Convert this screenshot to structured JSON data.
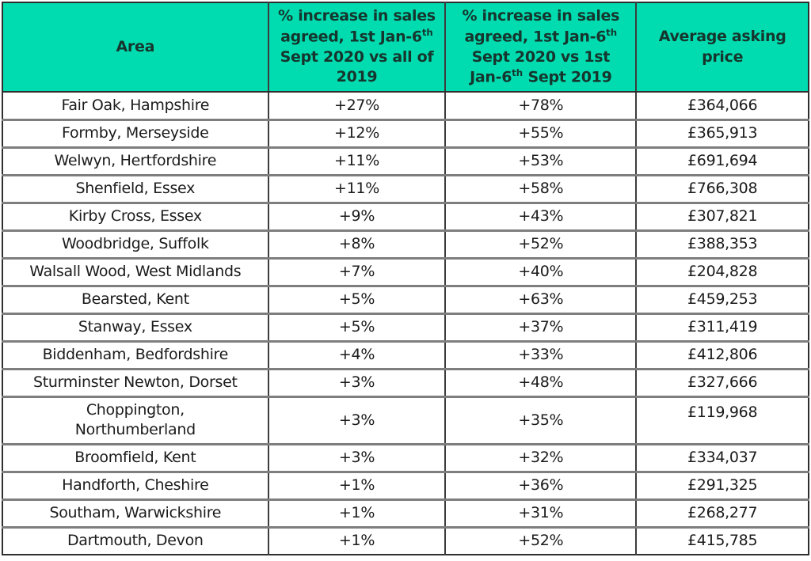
{
  "colors": {
    "header_bg": "#00dcb0",
    "header_text": "#16352d",
    "body_text": "#1b1b1b",
    "border_dark": "#2e2e2e",
    "border_gray": "#7e7e7e"
  },
  "header_render": {
    "area": "Area",
    "col2": {
      "part1": "% increase in sales agreed, 1st Jan-6",
      "sup1": "th",
      "part2": " Sept 2020 vs all of 2019"
    },
    "col3": {
      "part1": "% increase in sales agreed, 1st Jan-6",
      "sup1": "th",
      "part2": " Sept 2020 vs 1st Jan-6",
      "sup2": "th",
      "part3": " Sept 2019"
    },
    "col4": "Average asking price"
  },
  "chart_data": {
    "type": "table",
    "title": "",
    "columns": [
      "Area",
      "% increase in sales agreed, 1st Jan-6th Sept 2020 vs all of 2019",
      "% increase in sales agreed, 1st Jan-6th Sept 2020 vs 1st Jan-6th Sept 2019",
      "Average asking price"
    ],
    "rows": [
      {
        "area": "Fair Oak, Hampshire",
        "pct1": "+27%",
        "pct2": "+78%",
        "price": "£364,066"
      },
      {
        "area": "Formby, Merseyside",
        "pct1": "+12%",
        "pct2": "+55%",
        "price": "£365,913"
      },
      {
        "area": "Welwyn, Hertfordshire",
        "pct1": "+11%",
        "pct2": "+53%",
        "price": "£691,694"
      },
      {
        "area": "Shenfield, Essex",
        "pct1": "+11%",
        "pct2": "+58%",
        "price": "£766,308"
      },
      {
        "area": "Kirby Cross, Essex",
        "pct1": "+9%",
        "pct2": "+43%",
        "price": "£307,821"
      },
      {
        "area": "Woodbridge, Suffolk",
        "pct1": "+8%",
        "pct2": "+52%",
        "price": "£388,353"
      },
      {
        "area": "Walsall Wood, West Midlands",
        "pct1": "+7%",
        "pct2": "+40%",
        "price": "£204,828"
      },
      {
        "area": "Bearsted, Kent",
        "pct1": "+5%",
        "pct2": "+63%",
        "price": "£459,253"
      },
      {
        "area": "Stanway, Essex",
        "pct1": "+5%",
        "pct2": "+37%",
        "price": "£311,419"
      },
      {
        "area": "Biddenham, Bedfordshire",
        "pct1": "+4%",
        "pct2": "+33%",
        "price": "£412,806"
      },
      {
        "area": "Sturminster Newton, Dorset",
        "pct1": "+3%",
        "pct2": "+48%",
        "price": "£327,666"
      },
      {
        "area": "Choppington,",
        "area_line2": "Northumberland",
        "pct1": "+3%",
        "pct2": "+35%",
        "price": "£119,968"
      },
      {
        "area": "Broomfield, Kent",
        "pct1": "+3%",
        "pct2": "+32%",
        "price": "£334,037"
      },
      {
        "area": "Handforth, Cheshire",
        "pct1": "+1%",
        "pct2": "+36%",
        "price": "£291,325"
      },
      {
        "area": "Southam, Warwickshire",
        "pct1": "+1%",
        "pct2": "+31%",
        "price": "£268,277"
      },
      {
        "area": "Dartmouth, Devon",
        "pct1": "+1%",
        "pct2": "+52%",
        "price": "£415,785"
      }
    ]
  }
}
